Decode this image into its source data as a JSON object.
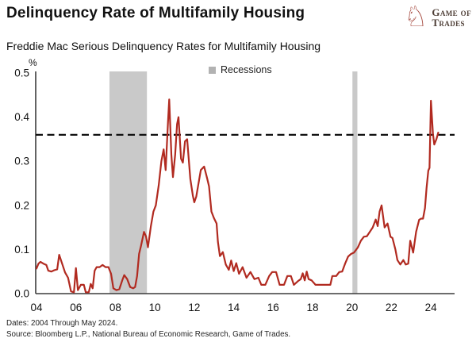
{
  "header": {
    "title": "Delinquency Rate of Multifamily Housing",
    "subtitle": "Freddie Mac Serious Delinquency Rates for Multifamily Housing"
  },
  "logo": {
    "knight_icon": "chess-knight-icon",
    "line1": "Game of",
    "line2": "Trades",
    "icon_color": "#A5483E",
    "text_color": "#4E3E36"
  },
  "legend": {
    "label": "Recessions",
    "marker_color": "#B2B2B2"
  },
  "footer": {
    "dates": "Dates: 2004 Through May 2024.",
    "source": "Source: Bloomberg L.P., National Bureau of Economic Research, Game of Trades."
  },
  "chart_data": {
    "type": "line",
    "title": "Freddie Mac Serious Delinquency Rates for Multifamily Housing",
    "unit_label": "%",
    "xlabel": "",
    "ylabel": "%",
    "ylim": [
      0,
      0.5
    ],
    "xlim": [
      2004,
      2025.2
    ],
    "grid": false,
    "legend_position": "top-center",
    "yticks": [
      0.0,
      0.1,
      0.2,
      0.3,
      0.4,
      0.5
    ],
    "ytick_labels": [
      "0.0",
      "0.1",
      "0.2",
      "0.3",
      "0.4",
      "0.5"
    ],
    "xticks": [
      2004,
      2006,
      2008,
      2010,
      2012,
      2014,
      2016,
      2018,
      2020,
      2022,
      2024
    ],
    "xtick_labels": [
      "04",
      "06",
      "08",
      "10",
      "12",
      "14",
      "16",
      "18",
      "20",
      "22",
      "24"
    ],
    "threshold_line": {
      "value": 0.36,
      "style": "dashed",
      "color": "#111111"
    },
    "recessions": [
      {
        "start": 2007.7,
        "end": 2009.6
      },
      {
        "start": 2020.02,
        "end": 2020.27
      }
    ],
    "recession_color": "#C9C9C9",
    "axis_color": "#3c3c3c",
    "series": [
      {
        "name": "Freddie Mac Serious Delinquency Rate",
        "color": "#B12A20",
        "points": [
          [
            2004.0,
            0.057
          ],
          [
            2004.1,
            0.068
          ],
          [
            2004.2,
            0.072
          ],
          [
            2004.35,
            0.068
          ],
          [
            2004.5,
            0.065
          ],
          [
            2004.6,
            0.052
          ],
          [
            2004.75,
            0.05
          ],
          [
            2004.9,
            0.053
          ],
          [
            2005.05,
            0.055
          ],
          [
            2005.15,
            0.088
          ],
          [
            2005.3,
            0.068
          ],
          [
            2005.45,
            0.048
          ],
          [
            2005.6,
            0.036
          ],
          [
            2005.75,
            0.005
          ],
          [
            2005.9,
            0.003
          ],
          [
            2006.0,
            0.058
          ],
          [
            2006.1,
            0.008
          ],
          [
            2006.25,
            0.02
          ],
          [
            2006.4,
            0.02
          ],
          [
            2006.5,
            0.003
          ],
          [
            2006.65,
            0.003
          ],
          [
            2006.75,
            0.022
          ],
          [
            2006.85,
            0.012
          ],
          [
            2006.95,
            0.052
          ],
          [
            2007.05,
            0.06
          ],
          [
            2007.2,
            0.06
          ],
          [
            2007.35,
            0.065
          ],
          [
            2007.5,
            0.06
          ],
          [
            2007.65,
            0.06
          ],
          [
            2007.78,
            0.045
          ],
          [
            2007.9,
            0.012
          ],
          [
            2008.05,
            0.008
          ],
          [
            2008.2,
            0.01
          ],
          [
            2008.35,
            0.03
          ],
          [
            2008.45,
            0.042
          ],
          [
            2008.6,
            0.033
          ],
          [
            2008.75,
            0.015
          ],
          [
            2008.9,
            0.012
          ],
          [
            2009.0,
            0.015
          ],
          [
            2009.1,
            0.04
          ],
          [
            2009.2,
            0.09
          ],
          [
            2009.3,
            0.108
          ],
          [
            2009.45,
            0.14
          ],
          [
            2009.55,
            0.13
          ],
          [
            2009.65,
            0.105
          ],
          [
            2009.8,
            0.153
          ],
          [
            2009.93,
            0.186
          ],
          [
            2010.05,
            0.2
          ],
          [
            2010.2,
            0.246
          ],
          [
            2010.33,
            0.3
          ],
          [
            2010.45,
            0.327
          ],
          [
            2010.55,
            0.28
          ],
          [
            2010.67,
            0.39
          ],
          [
            2010.73,
            0.44
          ],
          [
            2010.84,
            0.315
          ],
          [
            2010.92,
            0.264
          ],
          [
            2011.03,
            0.315
          ],
          [
            2011.13,
            0.384
          ],
          [
            2011.2,
            0.4
          ],
          [
            2011.33,
            0.306
          ],
          [
            2011.42,
            0.297
          ],
          [
            2011.53,
            0.345
          ],
          [
            2011.64,
            0.35
          ],
          [
            2011.8,
            0.26
          ],
          [
            2011.93,
            0.222
          ],
          [
            2012.0,
            0.207
          ],
          [
            2012.1,
            0.22
          ],
          [
            2012.33,
            0.28
          ],
          [
            2012.5,
            0.288
          ],
          [
            2012.65,
            0.262
          ],
          [
            2012.75,
            0.243
          ],
          [
            2012.87,
            0.186
          ],
          [
            2013.0,
            0.171
          ],
          [
            2013.13,
            0.159
          ],
          [
            2013.2,
            0.117
          ],
          [
            2013.3,
            0.085
          ],
          [
            2013.45,
            0.094
          ],
          [
            2013.6,
            0.066
          ],
          [
            2013.75,
            0.054
          ],
          [
            2013.87,
            0.075
          ],
          [
            2014.0,
            0.051
          ],
          [
            2014.13,
            0.069
          ],
          [
            2014.27,
            0.045
          ],
          [
            2014.45,
            0.06
          ],
          [
            2014.65,
            0.036
          ],
          [
            2014.85,
            0.049
          ],
          [
            2015.05,
            0.033
          ],
          [
            2015.25,
            0.036
          ],
          [
            2015.4,
            0.02
          ],
          [
            2015.6,
            0.02
          ],
          [
            2015.8,
            0.04
          ],
          [
            2015.95,
            0.049
          ],
          [
            2016.15,
            0.049
          ],
          [
            2016.33,
            0.02
          ],
          [
            2016.55,
            0.02
          ],
          [
            2016.72,
            0.04
          ],
          [
            2016.9,
            0.04
          ],
          [
            2017.05,
            0.02
          ],
          [
            2017.25,
            0.028
          ],
          [
            2017.4,
            0.033
          ],
          [
            2017.5,
            0.046
          ],
          [
            2017.6,
            0.03
          ],
          [
            2017.7,
            0.05
          ],
          [
            2017.8,
            0.033
          ],
          [
            2017.95,
            0.03
          ],
          [
            2018.15,
            0.02
          ],
          [
            2018.4,
            0.02
          ],
          [
            2018.65,
            0.02
          ],
          [
            2018.9,
            0.02
          ],
          [
            2019.0,
            0.04
          ],
          [
            2019.2,
            0.04
          ],
          [
            2019.35,
            0.049
          ],
          [
            2019.5,
            0.05
          ],
          [
            2019.65,
            0.068
          ],
          [
            2019.8,
            0.084
          ],
          [
            2019.95,
            0.09
          ],
          [
            2020.1,
            0.093
          ],
          [
            2020.3,
            0.105
          ],
          [
            2020.45,
            0.12
          ],
          [
            2020.6,
            0.129
          ],
          [
            2020.75,
            0.13
          ],
          [
            2020.9,
            0.14
          ],
          [
            2021.05,
            0.15
          ],
          [
            2021.2,
            0.168
          ],
          [
            2021.3,
            0.153
          ],
          [
            2021.4,
            0.186
          ],
          [
            2021.5,
            0.2
          ],
          [
            2021.65,
            0.15
          ],
          [
            2021.8,
            0.159
          ],
          [
            2021.95,
            0.129
          ],
          [
            2022.05,
            0.126
          ],
          [
            2022.2,
            0.1
          ],
          [
            2022.3,
            0.076
          ],
          [
            2022.45,
            0.066
          ],
          [
            2022.6,
            0.076
          ],
          [
            2022.72,
            0.066
          ],
          [
            2022.85,
            0.068
          ],
          [
            2022.95,
            0.12
          ],
          [
            2023.1,
            0.093
          ],
          [
            2023.25,
            0.14
          ],
          [
            2023.4,
            0.167
          ],
          [
            2023.5,
            0.17
          ],
          [
            2023.6,
            0.17
          ],
          [
            2023.7,
            0.194
          ],
          [
            2023.78,
            0.24
          ],
          [
            2023.87,
            0.279
          ],
          [
            2023.93,
            0.285
          ],
          [
            2024.0,
            0.437
          ],
          [
            2024.1,
            0.363
          ],
          [
            2024.17,
            0.338
          ],
          [
            2024.28,
            0.35
          ],
          [
            2024.37,
            0.365
          ]
        ]
      }
    ]
  }
}
